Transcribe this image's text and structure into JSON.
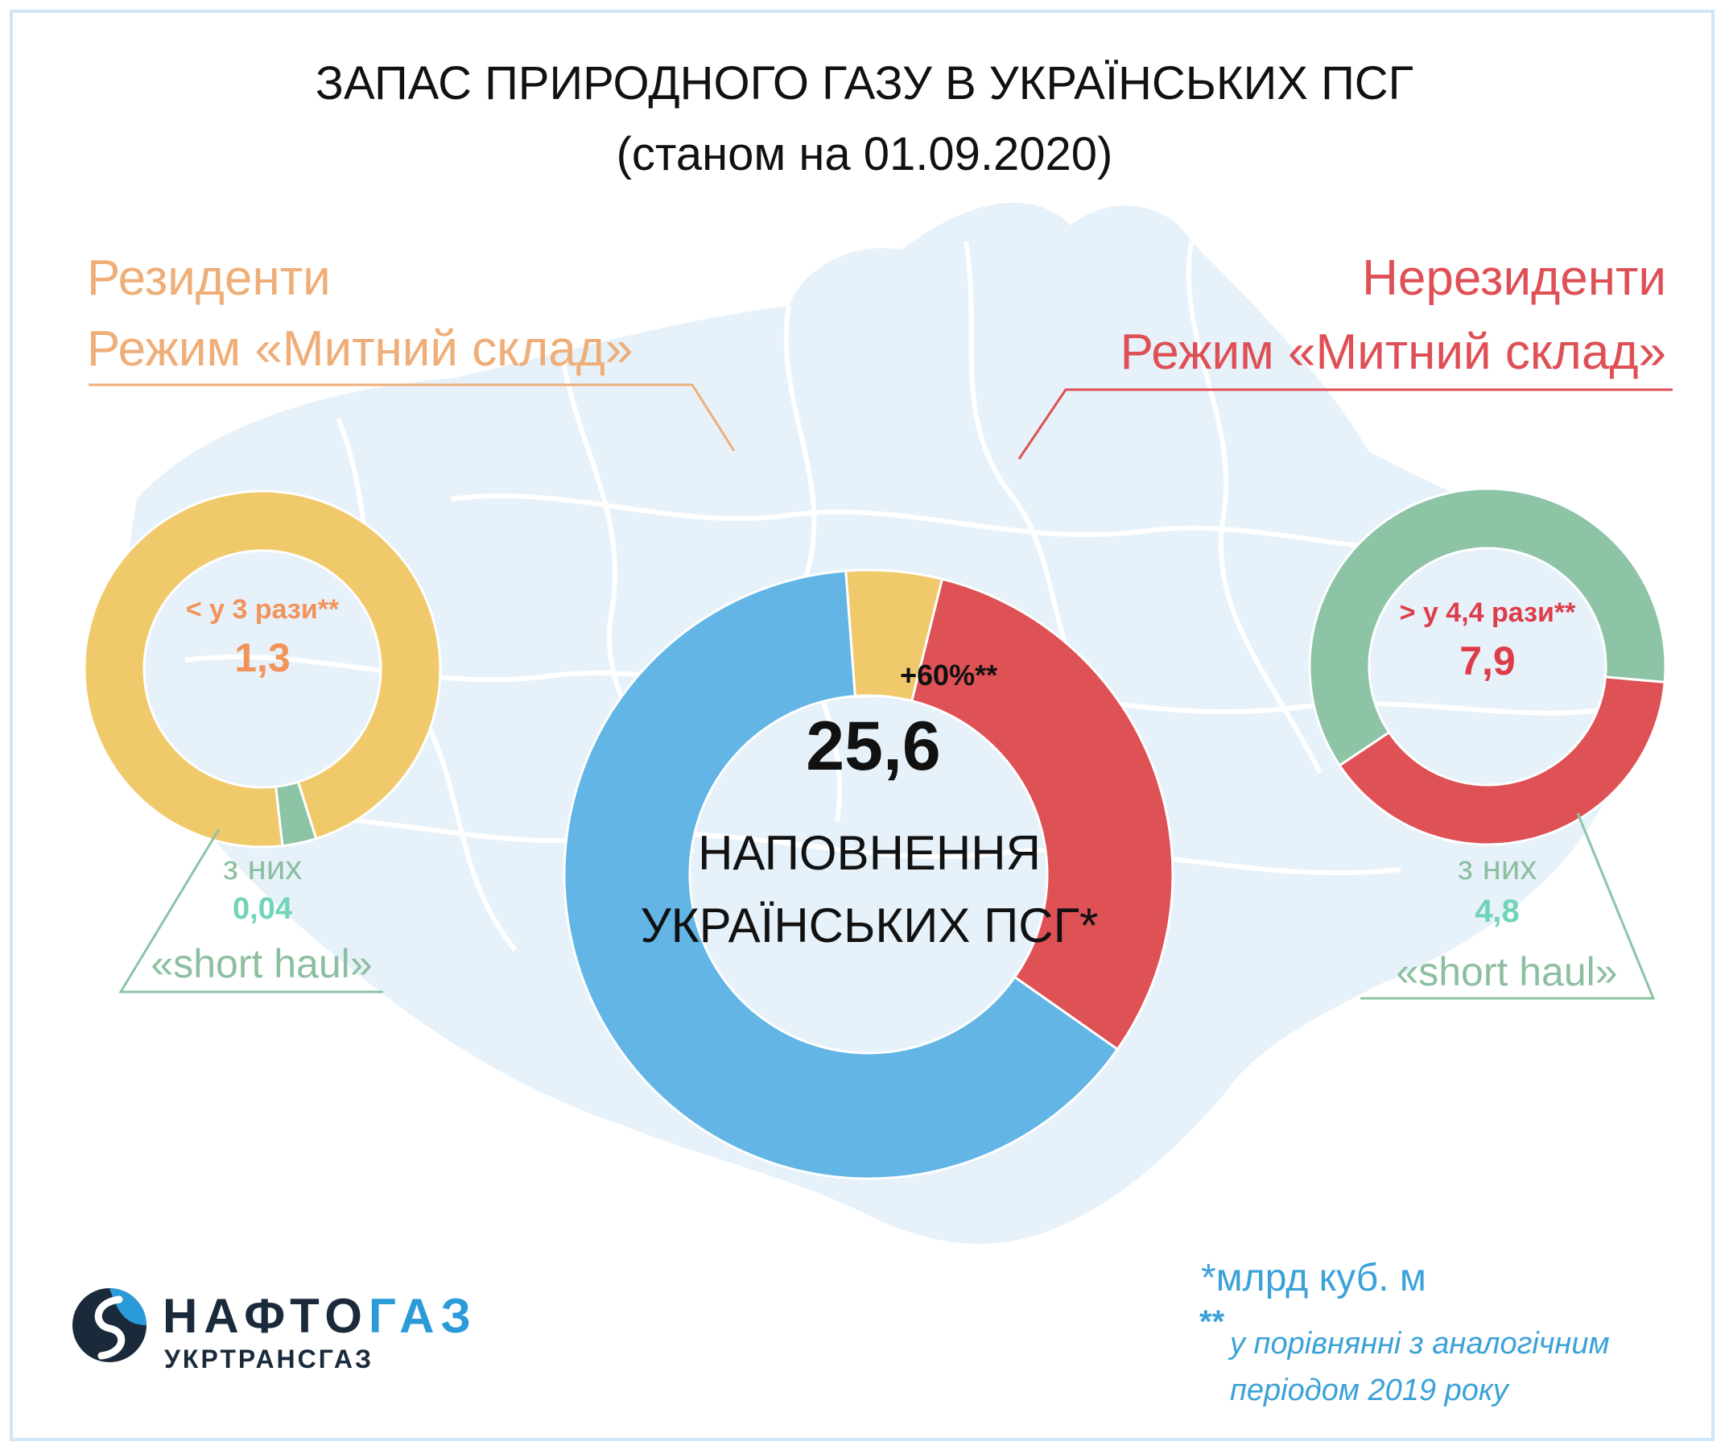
{
  "title": "ЗАПАС ПРИРОДНОГО ГАЗУ В УКРАЇНСЬКИХ ПСГ",
  "subtitle": "(станом на 01.09.2020)",
  "colors": {
    "resident": "#f0c96b",
    "non_resident": "#de5256",
    "other": "#62b5e5",
    "short_haul": "#8dc4a6",
    "map": "#e4f0fa"
  },
  "residents": {
    "title_line1": "Резиденти",
    "title_line2": "Режим «Митний склад»",
    "note": "< у 3 рази**",
    "value": "1,3",
    "sub_label1": "з них",
    "sub_value": "0,04",
    "sub_label2": "«short haul»"
  },
  "non_residents": {
    "title_line1": "Нерезиденти",
    "title_line2": "Режим «Митний склад»",
    "note": "> у 4,4 рази**",
    "value": "7,9",
    "sub_label1": "з них",
    "sub_value": "4,8",
    "sub_label2": "«short haul»"
  },
  "main": {
    "growth": "+60%**",
    "value": "25,6",
    "label_line1": "НАПОВНЕННЯ",
    "label_line2": "УКРАЇНСЬКИХ ПСГ*"
  },
  "footnotes": {
    "unit": "*млрд куб. м",
    "stars": "**",
    "comparison_line1": "у порівнянні з аналогічним",
    "comparison_line2": "періодом 2019 року"
  },
  "logo": {
    "name_part1": "НАФТО",
    "name_part2": "ГАЗ",
    "sub": "УКРТРАНСГАЗ"
  },
  "chart_data": [
    {
      "type": "pie",
      "name": "main",
      "total": 25.6,
      "slices": [
        {
          "key": "non_resident",
          "value": 7.9
        },
        {
          "key": "other",
          "value": 16.4
        },
        {
          "key": "resident",
          "value": 1.3
        }
      ]
    },
    {
      "type": "pie",
      "name": "residents",
      "total": 1.3,
      "slices": [
        {
          "key": "resident",
          "value": 1.26
        },
        {
          "key": "short_haul",
          "value": 0.04
        }
      ]
    },
    {
      "type": "pie",
      "name": "non_residents",
      "total": 7.9,
      "slices": [
        {
          "key": "non_resident",
          "value": 3.1
        },
        {
          "key": "short_haul",
          "value": 4.8
        }
      ]
    }
  ]
}
